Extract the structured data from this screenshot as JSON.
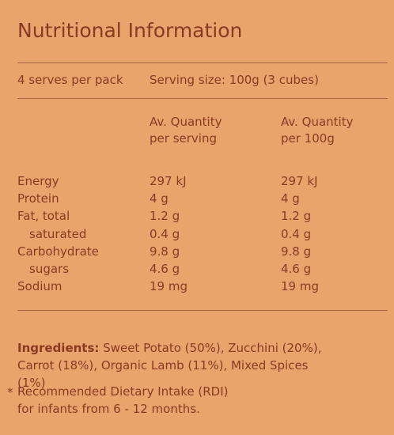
{
  "title": "Nutritional Information",
  "serves": "4 serves per pack",
  "serving_size": "Serving size: 100g (3 cubes)",
  "columns": {
    "per_serving": [
      "Av. Quantity",
      "per serving"
    ],
    "per_100g": [
      "Av. Quantity",
      "per 100g"
    ]
  },
  "rows": [
    {
      "name": "Energy",
      "per_serving": "297 kJ",
      "per_100g": "297 kJ",
      "indent": false
    },
    {
      "name": "Protein",
      "per_serving": "4 g",
      "per_100g": "4 g",
      "indent": false
    },
    {
      "name": "Fat, total",
      "per_serving": "1.2 g",
      "per_100g": "1.2 g",
      "indent": false
    },
    {
      "name": "saturated",
      "per_serving": "0.4 g",
      "per_100g": "0.4 g",
      "indent": true
    },
    {
      "name": "Carbohydrate",
      "per_serving": "9.8 g",
      "per_100g": "9.8 g",
      "indent": false
    },
    {
      "name": "sugars",
      "per_serving": "4.6 g",
      "per_100g": "4.6 g",
      "indent": true
    },
    {
      "name": "Sodium",
      "per_serving": "19 mg",
      "per_100g": "19 mg",
      "indent": false
    }
  ],
  "ingredients": {
    "label": "Ingredients:",
    "text": "Sweet Potato (50%), Zucchini (20%), Carrot (18%), Organic Lamb (11%), Mixed Spices (1%)"
  },
  "footnote": {
    "marker": "*",
    "line1": "Recommended Dietary Intake (RDI)",
    "line2": "for infants from 6 - 12 months."
  }
}
